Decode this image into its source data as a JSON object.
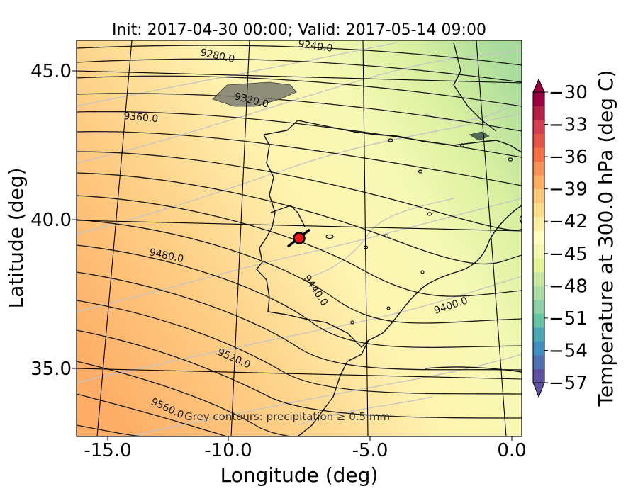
{
  "title": "Init: 2017-04-30 00:00; Valid: 2017-05-14 09:00",
  "xlabel": "Longitude (deg)",
  "ylabel": "Latitude (deg)",
  "x_ticks": [
    "-15.0",
    "-10.0",
    "-5.0",
    "0.0"
  ],
  "y_ticks": [
    "45.0",
    "40.0",
    "35.0"
  ],
  "note": "Grey contours: precipitation ≥ 0.5 mm",
  "colorbar": {
    "label": "Temperature at 300.0 hPa (deg C)",
    "ticks": [
      "−30",
      "−33",
      "−36",
      "−39",
      "−42",
      "−45",
      "−48",
      "−51",
      "−54",
      "−57"
    ]
  },
  "contour_labels": [
    "9240.0",
    "9280.0",
    "9320.0",
    "9360.0",
    "9400.0",
    "9440.0",
    "9480.0",
    "9520.0",
    "9560.0"
  ],
  "marker": {
    "lon": -7.6,
    "lat": 39.3,
    "color": "#e8161b"
  },
  "chart_data": {
    "type": "heatmap",
    "title": "Init: 2017-04-30 00:00; Valid: 2017-05-14 09:00",
    "xlabel": "Longitude (deg)",
    "ylabel": "Latitude (deg)",
    "xlim": [
      -15.9,
      0.3
    ],
    "ylim": [
      32.6,
      46.1
    ],
    "colorbar_range": [
      -57,
      -30
    ],
    "colorbar_step": 3,
    "contour_variable_levels": [
      9240,
      9280,
      9320,
      9360,
      9400,
      9440,
      9480,
      9520,
      9560
    ]
  }
}
